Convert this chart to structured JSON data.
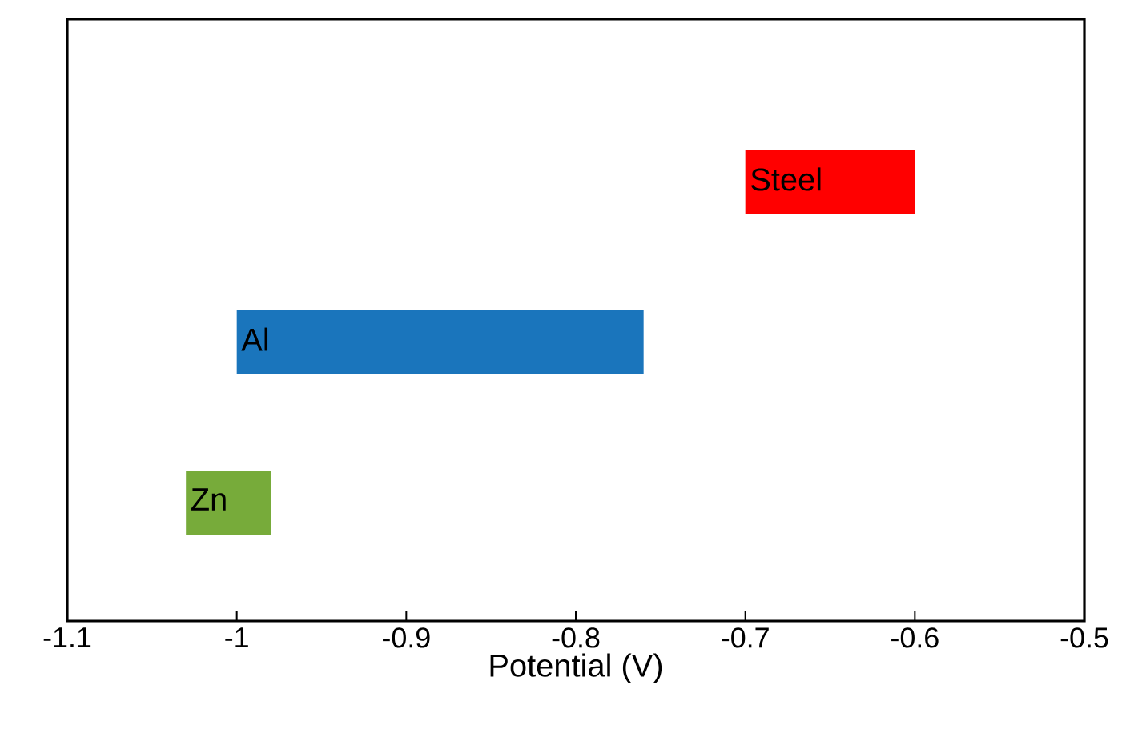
{
  "chart_data": {
    "type": "bar",
    "orientation": "horizontal",
    "xlabel": "Potential (V)",
    "categories": [
      "Steel",
      "Al",
      "Zn"
    ],
    "base": [
      -0.7,
      -1.0,
      -1.03
    ],
    "values": [
      0.1,
      0.24,
      0.05
    ],
    "colors": [
      "#ff0000",
      "#1a75bc",
      "#77ab3a"
    ],
    "xlim": [
      -1.1,
      -0.5
    ],
    "xticks": [
      -1.1,
      -1,
      -0.9,
      -0.8,
      -0.7,
      -0.6,
      -0.5
    ],
    "tick_labels": "x",
    "grid": false
  }
}
